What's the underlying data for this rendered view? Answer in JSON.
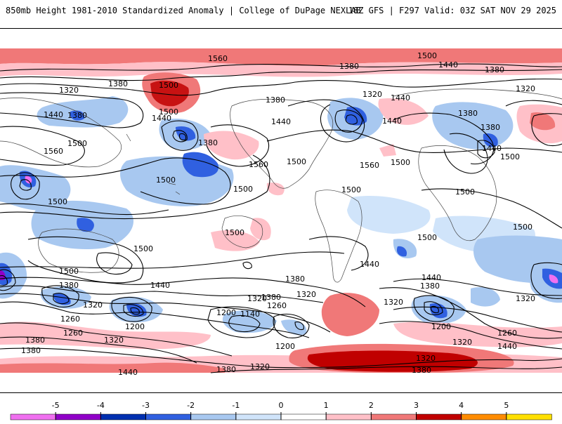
{
  "header": {
    "title": "850mb Height 1981-2010 Standardized Anomaly | College of DuPage NEXLAB",
    "valid": "18Z GFS | F297 Valid: 03Z SAT NOV 29 2025"
  },
  "colorbar": {
    "ticks": [
      "-5",
      "-4",
      "-3",
      "-2",
      "-1",
      "0",
      "1",
      "2",
      "3",
      "4",
      "5"
    ],
    "colors": [
      "#f070f0",
      "#9000c8",
      "#0030b0",
      "#3060e0",
      "#a8c8f0",
      "#d0e4fa",
      "#ffffff",
      "#ffc0c8",
      "#f07878",
      "#c00000",
      "#ff8c00",
      "#ffe000"
    ]
  },
  "contours": [
    {
      "text": "1560"
    },
    {
      "text": "1500"
    },
    {
      "text": "1440"
    },
    {
      "text": "1380"
    },
    {
      "text": "1380"
    },
    {
      "text": "1320"
    },
    {
      "text": "1380"
    },
    {
      "text": "1500"
    },
    {
      "text": "1380"
    },
    {
      "text": "1320"
    },
    {
      "text": "1440"
    },
    {
      "text": "1380"
    },
    {
      "text": "1320"
    },
    {
      "text": "1440"
    },
    {
      "text": "1380"
    },
    {
      "text": "1440"
    },
    {
      "text": "1380"
    },
    {
      "text": "1500"
    },
    {
      "text": "1440"
    },
    {
      "text": "1440"
    },
    {
      "text": "1380"
    },
    {
      "text": "1500"
    },
    {
      "text": "1500"
    },
    {
      "text": "1440"
    },
    {
      "text": "1560"
    },
    {
      "text": "1500"
    },
    {
      "text": "1560"
    },
    {
      "text": "1500"
    },
    {
      "text": "1560"
    },
    {
      "text": "1500"
    },
    {
      "text": "1500"
    },
    {
      "text": "1500"
    },
    {
      "text": "1500"
    },
    {
      "text": "1500"
    },
    {
      "text": "1500"
    },
    {
      "text": "1500"
    },
    {
      "text": "1500"
    },
    {
      "text": "1500"
    },
    {
      "text": "1500"
    },
    {
      "text": "1440"
    },
    {
      "text": "1380"
    },
    {
      "text": "1320"
    },
    {
      "text": "1260"
    },
    {
      "text": "1200"
    },
    {
      "text": "1440"
    },
    {
      "text": "1380"
    },
    {
      "text": "1320"
    },
    {
      "text": "1260"
    },
    {
      "text": "1200"
    },
    {
      "text": "1140"
    },
    {
      "text": "1200"
    },
    {
      "text": "1380"
    },
    {
      "text": "1320"
    },
    {
      "text": "1260"
    },
    {
      "text": "1380"
    },
    {
      "text": "1320"
    },
    {
      "text": "1320"
    },
    {
      "text": "1440"
    },
    {
      "text": "1380"
    },
    {
      "text": "1320"
    },
    {
      "text": "1200"
    },
    {
      "text": "1260"
    },
    {
      "text": "1320"
    },
    {
      "text": "1440"
    },
    {
      "text": "1320"
    },
    {
      "text": "1380"
    },
    {
      "text": "1320"
    },
    {
      "text": "1380"
    },
    {
      "text": "1440"
    },
    {
      "text": "1380"
    }
  ]
}
